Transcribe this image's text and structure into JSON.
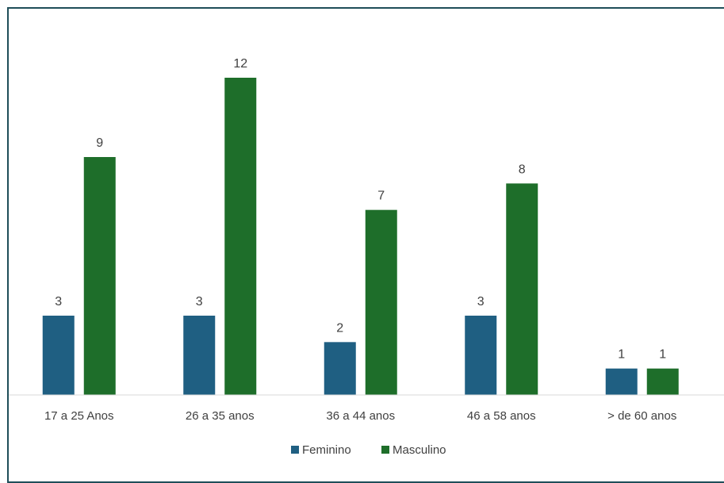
{
  "chart_data": {
    "type": "bar",
    "title": "",
    "xlabel": "",
    "ylabel": "",
    "ylim": [
      0,
      12
    ],
    "grid": false,
    "legend_position": "bottom",
    "categories": [
      "17 a 25  Anos",
      "26 a 35 anos",
      "36 a  44 anos",
      "46 a 58 anos",
      "> de 60 anos"
    ],
    "series": [
      {
        "name": "Feminino",
        "color": "#1f5f82",
        "values": [
          3,
          3,
          2,
          3,
          1
        ]
      },
      {
        "name": "Masculino",
        "color": "#1e6e2a",
        "values": [
          9,
          12,
          7,
          8,
          1
        ]
      }
    ]
  }
}
